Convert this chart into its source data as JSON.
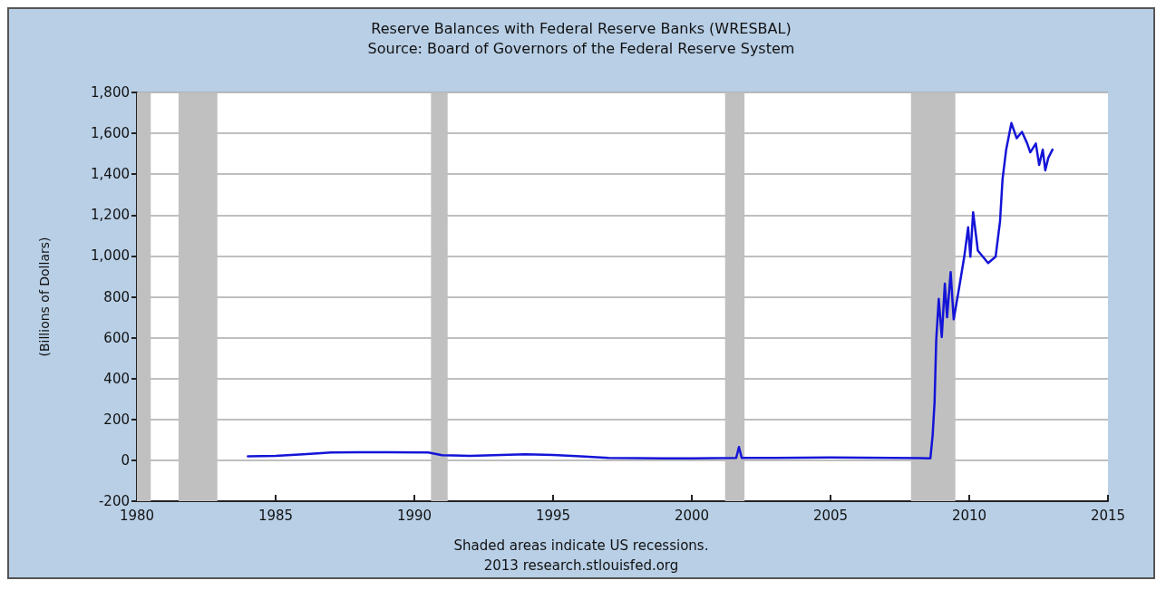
{
  "chart_data": {
    "type": "line",
    "title": "Reserve Balances with Federal Reserve Banks (WRESBAL)",
    "subtitle": "Source: Board of Governors of the Federal Reserve System",
    "ylabel": "(Billions of Dollars)",
    "annotations": [
      "Shaded areas indicate US recessions.",
      "2013 research.stlouisfed.org"
    ],
    "xlim": [
      1980,
      2015
    ],
    "xticks": [
      1980,
      1985,
      1990,
      1995,
      2000,
      2005,
      2010,
      2015
    ],
    "ylim": [
      -200,
      1800
    ],
    "yticks": [
      -200,
      0,
      200,
      400,
      600,
      800,
      {
        "value": 1000,
        "label": "1,000"
      },
      {
        "value": 1200,
        "label": "1,200"
      },
      {
        "value": 1400,
        "label": "1,400"
      },
      {
        "value": 1600,
        "label": "1,600"
      },
      {
        "value": 1800,
        "label": "1,800"
      }
    ],
    "grid": "y",
    "marker": "none",
    "line_style": "solid",
    "bands": [
      {
        "axis": "x",
        "from": 1980,
        "to": 1980.5,
        "color": "#c0c0c0"
      },
      {
        "axis": "x",
        "from": 1981.5,
        "to": 1982.9,
        "color": "#c0c0c0"
      },
      {
        "axis": "x",
        "from": 1990.6,
        "to": 1991.2,
        "color": "#c0c0c0"
      },
      {
        "axis": "x",
        "from": 2001.2,
        "to": 2001.9,
        "color": "#c0c0c0"
      },
      {
        "axis": "x",
        "from": 2007.9,
        "to": 2009.5,
        "color": "#c0c0c0"
      }
    ],
    "series": [
      {
        "color": "#1414d8",
        "x": [
          1984,
          1985,
          1986,
          1987,
          1988,
          1989,
          1990.5,
          1991,
          1992,
          1994,
          1995,
          1996,
          1997,
          1999,
          2000,
          2001.6,
          2001.7,
          2001.8,
          2003,
          2005,
          2008.6,
          2008.68,
          2008.75,
          2008.81,
          2008.9,
          2009.01,
          2009.12,
          2009.2,
          2009.33,
          2009.44,
          2009.66,
          2009.82,
          2009.96,
          2010.04,
          2010.14,
          2010.31,
          2010.68,
          2010.95,
          2011.11,
          2011.2,
          2011.33,
          2011.52,
          2011.71,
          2011.9,
          2012.09,
          2012.2,
          2012.4,
          2012.52,
          2012.65,
          2012.74,
          2012.85,
          2013.0
        ],
        "values": [
          20,
          22,
          30,
          38,
          40,
          40,
          38,
          25,
          22,
          30,
          26,
          20,
          12,
          10,
          10,
          12,
          65,
          12,
          12,
          14,
          10,
          122,
          284,
          590,
          790,
          603,
          864,
          700,
          921,
          690,
          864,
          996,
          1140,
          996,
          1214,
          1026,
          965,
          996,
          1170,
          1375,
          1520,
          1650,
          1576,
          1607,
          1550,
          1507,
          1550,
          1445,
          1520,
          1419,
          1480,
          1520
        ]
      }
    ]
  }
}
